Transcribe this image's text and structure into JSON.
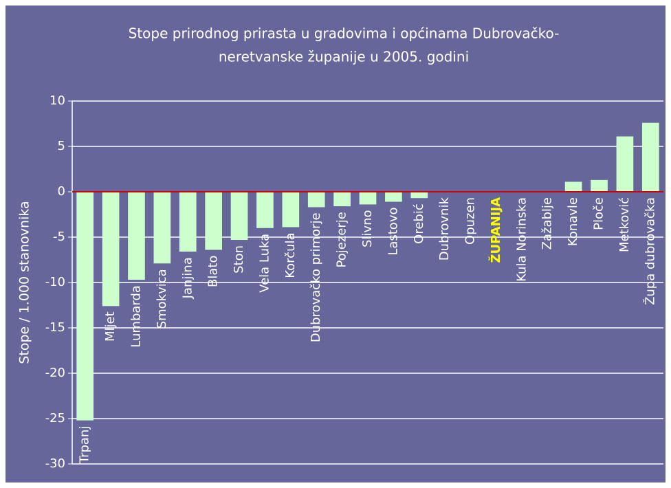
{
  "chart_data": {
    "type": "bar",
    "title": [
      "Stope prirodnog prirasta u gradovima i općinama Dubrovačko-",
      "neretvanske županije u 2005. godini"
    ],
    "y_label": "Stope / 1.000 stanovnika",
    "categories": [
      "Trpanj",
      "Mljet",
      "Lumbarda",
      "Smokvica",
      "Janjina",
      "Blato",
      "Ston",
      "Vela Luka",
      "Korčula",
      "Dubrovačko primorje",
      "Pojezerje",
      "Slivno",
      "Lastovo",
      "Orebić",
      "Dubrovnik",
      "Opuzen",
      "ŽUPANIJA",
      "Kula Norinska",
      "Zažablje",
      "Konavle",
      "Ploče",
      "Metković",
      "Župa dubrovačka"
    ],
    "values": [
      -25.2,
      -12.6,
      -9.7,
      -7.9,
      -6.6,
      -6.4,
      -5.3,
      -4.0,
      -3.9,
      -1.7,
      -1.6,
      -1.4,
      -1.1,
      -0.7,
      0,
      0,
      0,
      0,
      0,
      1.1,
      1.3,
      6.1,
      7.6
    ],
    "color": "#ccffcc",
    "highlight": "ŽUPANIJA",
    "highlight_color": "#ffff00",
    "ylim": [
      -30,
      10
    ],
    "yticks": [
      10,
      5,
      0,
      -5,
      -10,
      -15,
      -20,
      -25,
      -30
    ],
    "grid": true
  }
}
